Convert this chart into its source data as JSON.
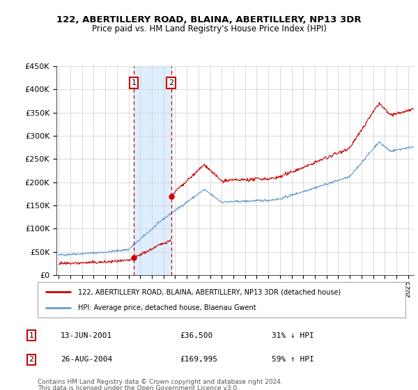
{
  "title": "122, ABERTILLERY ROAD, BLAINA, ABERTILLERY, NP13 3DR",
  "subtitle": "Price paid vs. HM Land Registry's House Price Index (HPI)",
  "ylabel_ticks": [
    "£0",
    "£50K",
    "£100K",
    "£150K",
    "£200K",
    "£250K",
    "£300K",
    "£350K",
    "£400K",
    "£450K"
  ],
  "yvalues": [
    0,
    50000,
    100000,
    150000,
    200000,
    250000,
    300000,
    350000,
    400000,
    450000
  ],
  "ylim": [
    0,
    450000
  ],
  "xlim_start": 1994.8,
  "xlim_end": 2025.5,
  "sale1_x": 2001.45,
  "sale1_price": 36500,
  "sale1_date": "13-JUN-2001",
  "sale1_hpi": "31% ↓ HPI",
  "sale1_price_str": "£36,500",
  "sale2_x": 2004.65,
  "sale2_price": 169995,
  "sale2_date": "26-AUG-2004",
  "sale2_hpi": "59% ↑ HPI",
  "sale2_price_str": "£169,995",
  "legend_line1": "122, ABERTILLERY ROAD, BLAINA, ABERTILLERY, NP13 3DR (detached house)",
  "legend_line2": "HPI: Average price, detached house, Blaenau Gwent",
  "footnote1": "Contains HM Land Registry data © Crown copyright and database right 2024.",
  "footnote2": "This data is licensed under the Open Government Licence v3.0.",
  "red_color": "#cc0000",
  "blue_color": "#6699cc",
  "highlight_color": "#ddeeff",
  "background_color": "#ffffff",
  "grid_color": "#cccccc"
}
